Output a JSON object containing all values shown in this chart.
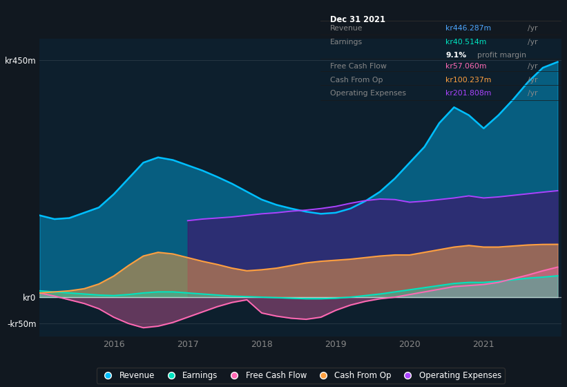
{
  "bg_color": "#111820",
  "plot_bg": "#0d1f2d",
  "years": [
    2015.0,
    2015.2,
    2015.4,
    2015.6,
    2015.8,
    2016.0,
    2016.2,
    2016.4,
    2016.6,
    2016.8,
    2017.0,
    2017.2,
    2017.4,
    2017.6,
    2017.8,
    2018.0,
    2018.2,
    2018.4,
    2018.6,
    2018.8,
    2019.0,
    2019.2,
    2019.4,
    2019.6,
    2019.8,
    2020.0,
    2020.2,
    2020.4,
    2020.6,
    2020.8,
    2021.0,
    2021.2,
    2021.4,
    2021.6,
    2021.8,
    2022.0
  ],
  "revenue": [
    155,
    148,
    150,
    160,
    170,
    195,
    225,
    255,
    265,
    260,
    250,
    240,
    228,
    215,
    200,
    185,
    175,
    168,
    162,
    158,
    160,
    168,
    182,
    200,
    225,
    255,
    285,
    330,
    360,
    345,
    320,
    345,
    375,
    408,
    435,
    446
  ],
  "earnings": [
    12,
    10,
    8,
    6,
    4,
    3,
    5,
    8,
    10,
    10,
    8,
    6,
    4,
    2,
    1,
    0,
    -1,
    -2,
    -3,
    -3,
    -2,
    0,
    3,
    6,
    10,
    14,
    18,
    22,
    26,
    28,
    28,
    30,
    33,
    36,
    38,
    40.5
  ],
  "free_cash_flow": [
    8,
    2,
    -5,
    -12,
    -22,
    -38,
    -50,
    -58,
    -55,
    -48,
    -38,
    -28,
    -18,
    -10,
    -5,
    -30,
    -36,
    -40,
    -42,
    -38,
    -25,
    -15,
    -8,
    -3,
    0,
    5,
    10,
    15,
    20,
    22,
    24,
    28,
    35,
    42,
    50,
    57
  ],
  "cash_from_op": [
    8,
    10,
    12,
    16,
    25,
    40,
    60,
    78,
    85,
    82,
    75,
    68,
    62,
    55,
    50,
    52,
    55,
    60,
    65,
    68,
    70,
    72,
    75,
    78,
    80,
    80,
    85,
    90,
    95,
    98,
    95,
    95,
    97,
    99,
    100,
    100.2
  ],
  "op_expenses": [
    0,
    0,
    0,
    0,
    0,
    0,
    0,
    0,
    0,
    0,
    145,
    148,
    150,
    152,
    155,
    158,
    160,
    163,
    165,
    168,
    172,
    178,
    183,
    186,
    185,
    180,
    182,
    185,
    188,
    192,
    188,
    190,
    193,
    196,
    199,
    201.8
  ],
  "revenue_color": "#00bfff",
  "earnings_color": "#00e5c0",
  "fcf_color": "#ff69b4",
  "cashop_color": "#ffa040",
  "opex_color": "#aa44ff",
  "opex_fill": "#3d1a6e",
  "ylim_min": -75,
  "ylim_max": 490,
  "ytick_labels": [
    "-kr50m",
    "kr0",
    "kr450m"
  ],
  "ytick_vals": [
    -50,
    0,
    450
  ],
  "xtick_labels": [
    "2016",
    "2017",
    "2018",
    "2019",
    "2020",
    "2021"
  ],
  "xtick_vals": [
    2016,
    2017,
    2018,
    2019,
    2020,
    2021
  ],
  "info_box": {
    "date": "Dec 31 2021",
    "revenue_label": "Revenue",
    "revenue_val": "kr446.287m",
    "revenue_color": "#4da6ff",
    "earnings_label": "Earnings",
    "earnings_val": "kr40.514m",
    "earnings_color": "#00e5c0",
    "margin_pct": "9.1%",
    "fcf_label": "Free Cash Flow",
    "fcf_val": "kr57.060m",
    "fcf_color": "#ff69b4",
    "cashop_label": "Cash From Op",
    "cashop_val": "kr100.237m",
    "cashop_color": "#ffa040",
    "opex_label": "Operating Expenses",
    "opex_val": "kr201.808m",
    "opex_color": "#aa44ff"
  },
  "legend_items": [
    {
      "label": "Revenue",
      "color": "#00bfff"
    },
    {
      "label": "Earnings",
      "color": "#00e5c0"
    },
    {
      "label": "Free Cash Flow",
      "color": "#ff69b4"
    },
    {
      "label": "Cash From Op",
      "color": "#ffa040"
    },
    {
      "label": "Operating Expenses",
      "color": "#aa44ff"
    }
  ]
}
